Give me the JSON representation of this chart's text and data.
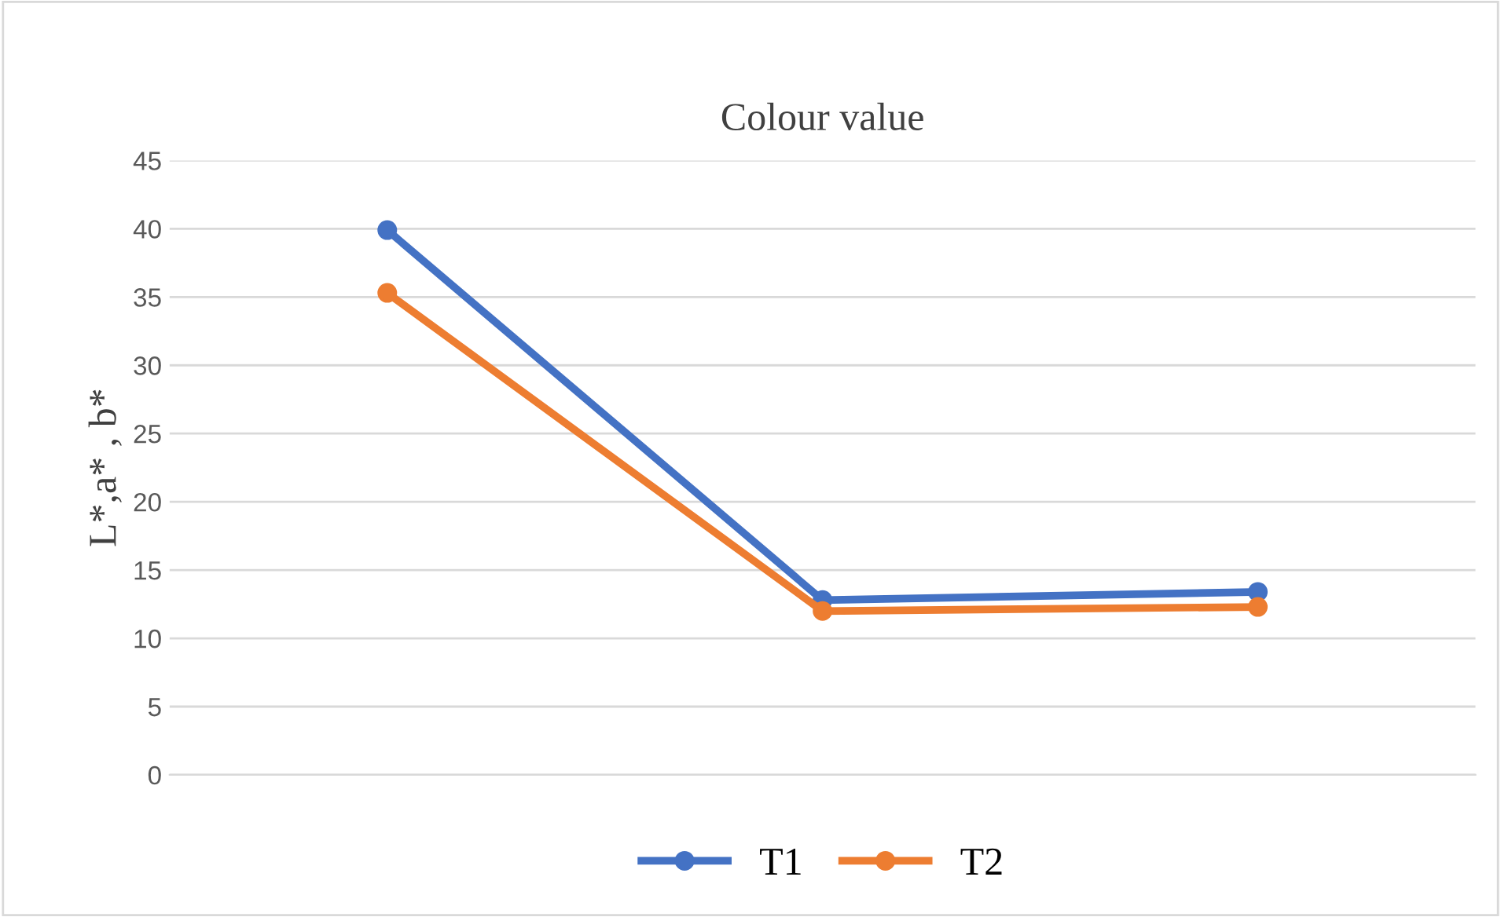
{
  "chart_data": {
    "type": "line",
    "title": "Colour value",
    "ylabel": "L*,a* , b*",
    "categories": [
      null,
      null,
      null
    ],
    "series": [
      {
        "name": "T1",
        "color": "#4472c4",
        "values": [
          39.9,
          12.8,
          13.4
        ]
      },
      {
        "name": "T2",
        "color": "#ed7d31",
        "values": [
          35.3,
          12.0,
          12.3
        ]
      }
    ],
    "ylim": [
      0,
      45
    ],
    "yticks": [
      0,
      5,
      10,
      15,
      20,
      25,
      30,
      35,
      40,
      45
    ],
    "grid": "y",
    "legend": "bottom",
    "marker": "circle",
    "line_style": "solid",
    "tick_labels": "y"
  }
}
